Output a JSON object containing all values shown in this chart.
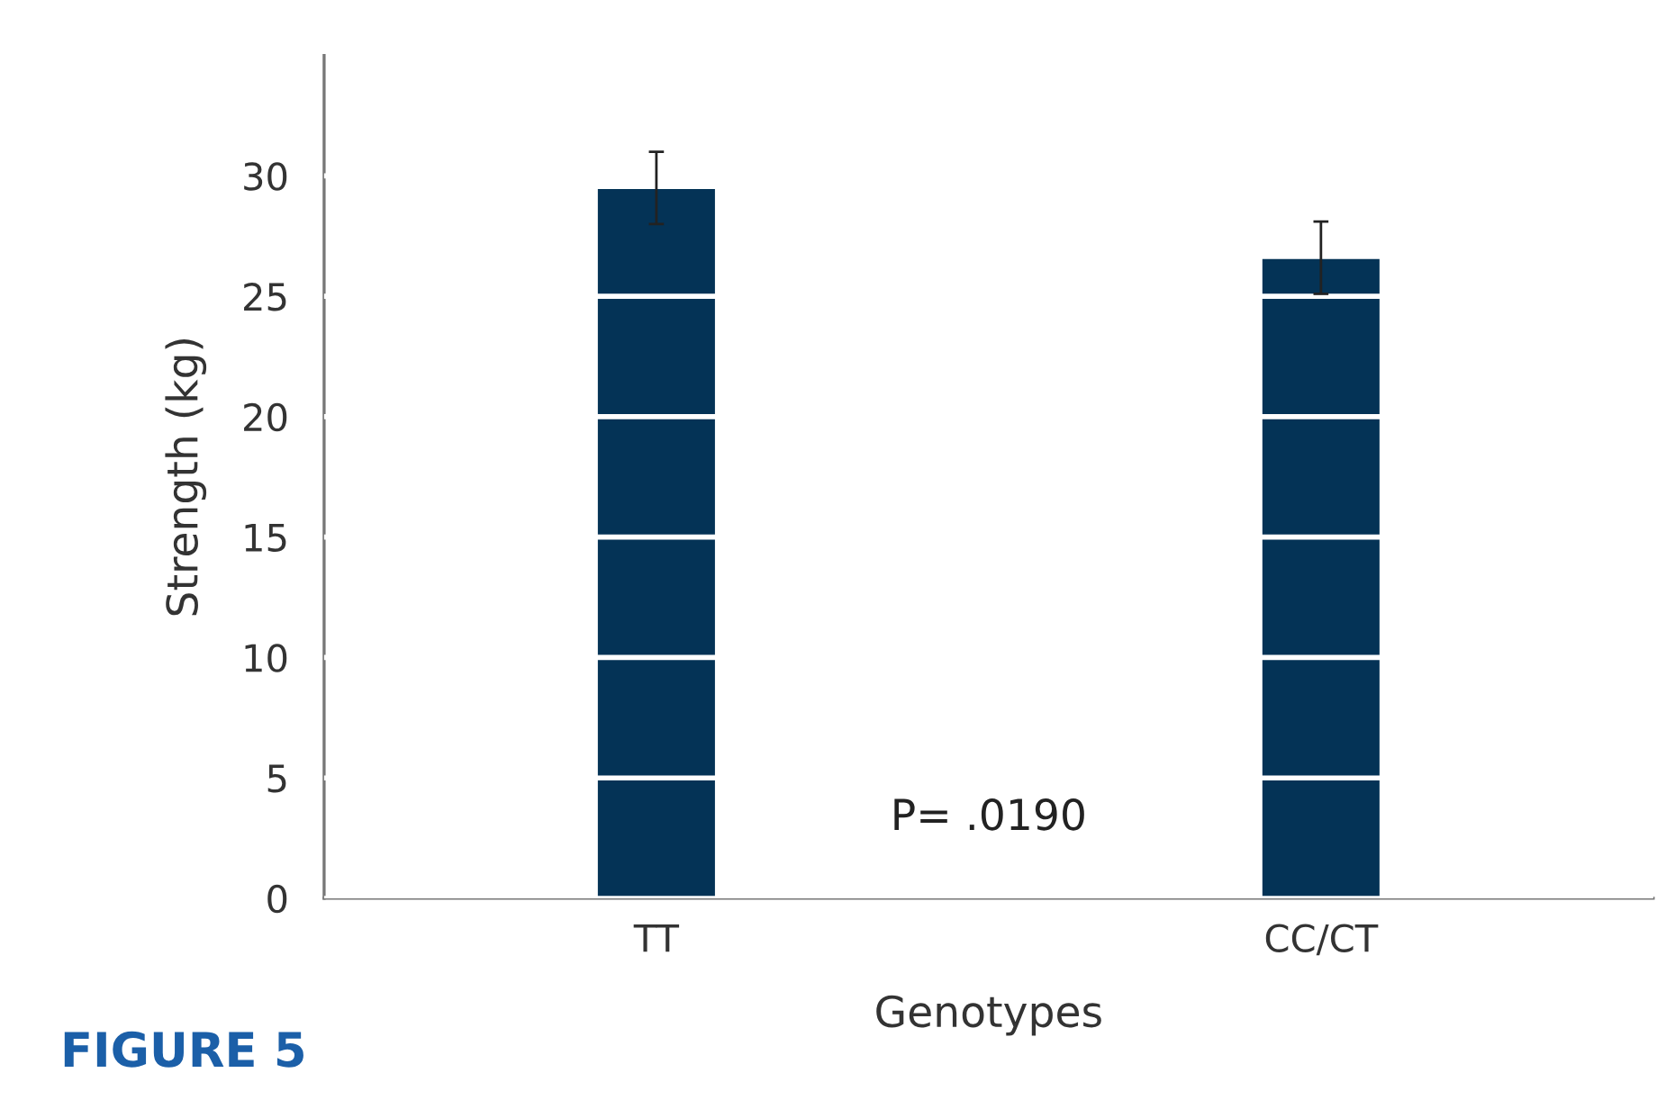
{
  "chart_data": {
    "type": "bar",
    "xlabel": "Genotypes",
    "ylabel": "Strength (kg)",
    "categories": [
      "TT",
      "CC/CT"
    ],
    "values": [
      29.5,
      26.6
    ],
    "errors": [
      1.5,
      1.5
    ],
    "color": "#043356",
    "ylim": [
      0,
      35
    ],
    "yticks": [
      0,
      5,
      10,
      15,
      20,
      25,
      30
    ],
    "grid": "y",
    "annotations": [
      "P= .0190",
      "FIGURE 5"
    ]
  }
}
